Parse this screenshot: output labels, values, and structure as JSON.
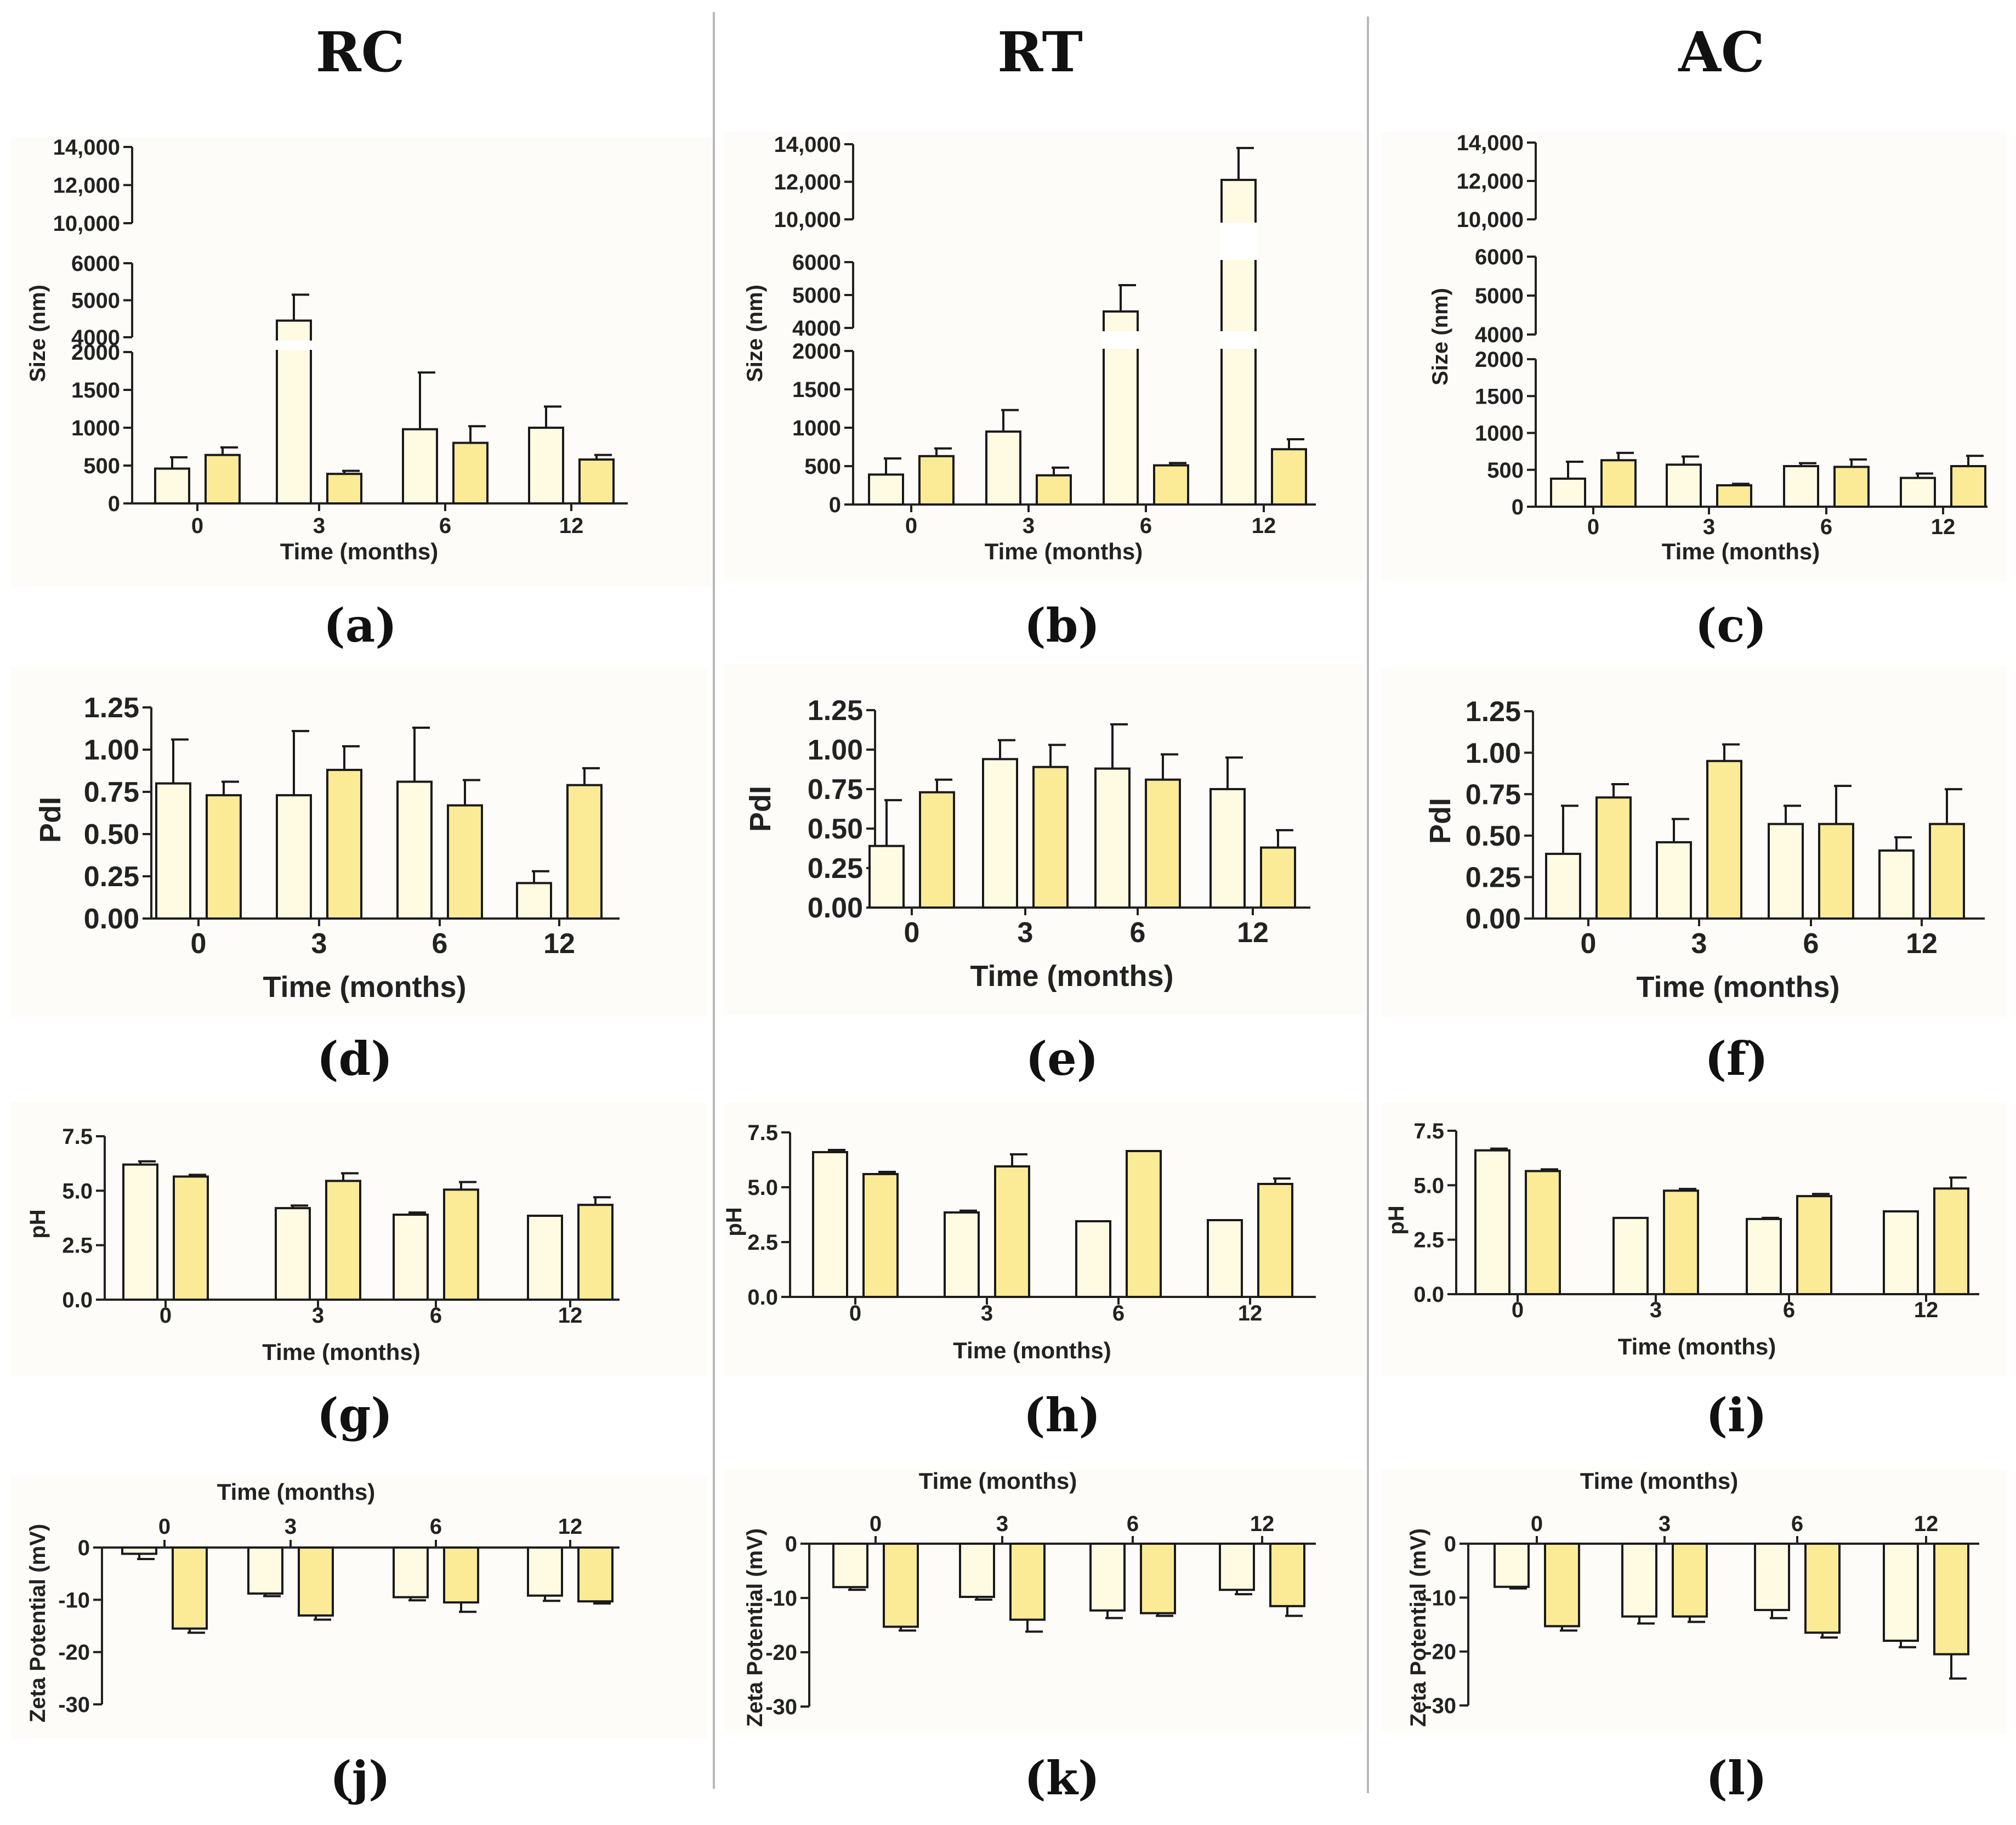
{
  "columns": [
    "RC",
    "RT",
    "AC"
  ],
  "panel_letters": [
    "(a)",
    "(b)",
    "(c)",
    "(d)",
    "(e)",
    "(f)",
    "(g)",
    "(h)",
    "(i)",
    "(j)",
    "(k)",
    "(l)"
  ],
  "colors": {
    "series1": "#fffbe3",
    "series2": "#fbeb96",
    "outline": "#1a1a1a",
    "background": "#fdfcf9"
  },
  "chart_data": [
    {
      "type": "bar",
      "panel": "(a)",
      "column": "RC",
      "xlabel": "Time (months)",
      "ylabel": "Size (nm)",
      "categories": [
        "0",
        "3",
        "6",
        "12"
      ],
      "segments": [
        {
          "range": [
            0,
            2000
          ],
          "ticks": [
            0,
            500,
            1000,
            1500,
            2000
          ],
          "tick_labels": [
            "0",
            "500",
            "1000",
            "1500",
            "2000"
          ]
        },
        {
          "range": [
            4000,
            6000
          ],
          "ticks": [
            4000,
            5000,
            6000
          ],
          "tick_labels": [
            "4000",
            "5000",
            "6000"
          ]
        },
        {
          "range": [
            10000,
            14000
          ],
          "ticks": [
            10000,
            12000,
            14000
          ],
          "tick_labels": [
            "10,000",
            "12,000",
            "14,000"
          ]
        }
      ],
      "series": [
        {
          "name": "series 1",
          "values": [
            460,
            4450,
            980,
            1000
          ],
          "errors": [
            150,
            700,
            750,
            280
          ]
        },
        {
          "name": "series 2",
          "values": [
            640,
            390,
            800,
            580
          ],
          "errors": [
            100,
            40,
            220,
            60
          ]
        }
      ]
    },
    {
      "type": "bar",
      "panel": "(b)",
      "column": "RT",
      "xlabel": "Time (months)",
      "ylabel": "Size (nm)",
      "categories": [
        "0",
        "3",
        "6",
        "12"
      ],
      "segments": [
        {
          "range": [
            0,
            2000
          ],
          "ticks": [
            0,
            500,
            1000,
            1500,
            2000
          ],
          "tick_labels": [
            "0",
            "500",
            "1000",
            "1500",
            "2000"
          ]
        },
        {
          "range": [
            4000,
            6000
          ],
          "ticks": [
            4000,
            5000,
            6000
          ],
          "tick_labels": [
            "4000",
            "5000",
            "6000"
          ]
        },
        {
          "range": [
            10000,
            14000
          ],
          "ticks": [
            10000,
            12000,
            14000
          ],
          "tick_labels": [
            "10,000",
            "12,000",
            "14,000"
          ]
        }
      ],
      "series": [
        {
          "name": "series 1",
          "values": [
            390,
            950,
            4500,
            12100
          ],
          "errors": [
            210,
            280,
            800,
            1700
          ]
        },
        {
          "name": "series 2",
          "values": [
            630,
            380,
            510,
            720
          ],
          "errors": [
            100,
            100,
            30,
            130
          ]
        }
      ]
    },
    {
      "type": "bar",
      "panel": "(c)",
      "column": "AC",
      "xlabel": "Time (months)",
      "ylabel": "Size (nm)",
      "categories": [
        "0",
        "3",
        "6",
        "12"
      ],
      "segments": [
        {
          "range": [
            0,
            2000
          ],
          "ticks": [
            0,
            500,
            1000,
            1500,
            2000
          ],
          "tick_labels": [
            "0",
            "500",
            "1000",
            "1500",
            "2000"
          ]
        },
        {
          "range": [
            4000,
            6000
          ],
          "ticks": [
            4000,
            5000,
            6000
          ],
          "tick_labels": [
            "4000",
            "5000",
            "6000"
          ]
        },
        {
          "range": [
            10000,
            14000
          ],
          "ticks": [
            10000,
            12000,
            14000
          ],
          "tick_labels": [
            "10,000",
            "12,000",
            "14,000"
          ]
        }
      ],
      "series": [
        {
          "name": "series 1",
          "values": [
            380,
            570,
            550,
            390
          ],
          "errors": [
            230,
            110,
            40,
            60
          ]
        },
        {
          "name": "series 2",
          "values": [
            630,
            290,
            540,
            550
          ],
          "errors": [
            100,
            20,
            100,
            140
          ]
        }
      ]
    },
    {
      "type": "bar",
      "panel": "(d)",
      "column": "RC",
      "xlabel": "Time (months)",
      "ylabel": "PdI",
      "categories": [
        "0",
        "3",
        "6",
        "12"
      ],
      "ylim": [
        0,
        1.25
      ],
      "ticks": [
        0,
        0.25,
        0.5,
        0.75,
        1,
        1.25
      ],
      "tick_labels": [
        "0.00",
        "0.25",
        "0.50",
        "0.75",
        "1.00",
        "1.25"
      ],
      "series": [
        {
          "name": "series 1",
          "values": [
            0.8,
            0.73,
            0.81,
            0.21
          ],
          "errors": [
            0.26,
            0.38,
            0.32,
            0.07
          ]
        },
        {
          "name": "series 2",
          "values": [
            0.73,
            0.88,
            0.67,
            0.79
          ],
          "errors": [
            0.08,
            0.14,
            0.15,
            0.1
          ]
        }
      ]
    },
    {
      "type": "bar",
      "panel": "(e)",
      "column": "RT",
      "xlabel": "Time (months)",
      "ylabel": "PdI",
      "categories": [
        "0",
        "3",
        "6",
        "12"
      ],
      "ylim": [
        0,
        1.25
      ],
      "ticks": [
        0,
        0.25,
        0.5,
        0.75,
        1,
        1.25
      ],
      "tick_labels": [
        "0.00",
        "0.25",
        "0.50",
        "0.75",
        "1.00",
        "1.25"
      ],
      "series": [
        {
          "name": "series 1",
          "values": [
            0.39,
            0.94,
            0.88,
            0.75
          ],
          "errors": [
            0.29,
            0.12,
            0.28,
            0.2
          ]
        },
        {
          "name": "series 2",
          "values": [
            0.73,
            0.89,
            0.81,
            0.38
          ],
          "errors": [
            0.08,
            0.14,
            0.16,
            0.11
          ]
        }
      ]
    },
    {
      "type": "bar",
      "panel": "(f)",
      "column": "AC",
      "xlabel": "Time (months)",
      "ylabel": "PdI",
      "categories": [
        "0",
        "3",
        "6",
        "12"
      ],
      "ylim": [
        0,
        1.25
      ],
      "ticks": [
        0,
        0.25,
        0.5,
        0.75,
        1,
        1.25
      ],
      "tick_labels": [
        "0.00",
        "0.25",
        "0.50",
        "0.75",
        "1.00",
        "1.25"
      ],
      "series": [
        {
          "name": "series 1",
          "values": [
            0.39,
            0.46,
            0.57,
            0.41
          ],
          "errors": [
            0.29,
            0.14,
            0.11,
            0.08
          ]
        },
        {
          "name": "series 2",
          "values": [
            0.73,
            0.95,
            0.57,
            0.57
          ],
          "errors": [
            0.08,
            0.1,
            0.23,
            0.21
          ]
        }
      ]
    },
    {
      "type": "bar",
      "panel": "(g)",
      "column": "RC",
      "xlabel": "Time (months)",
      "ylabel": "pH",
      "categories": [
        "0",
        "3",
        "6",
        "12"
      ],
      "ylim": [
        0,
        7.5
      ],
      "ticks": [
        0,
        2.5,
        5,
        7.5
      ],
      "tick_labels": [
        "0.0",
        "2.5",
        "5.0",
        "7.5"
      ],
      "series": [
        {
          "name": "series 1",
          "values": [
            6.2,
            4.2,
            3.9,
            3.85
          ],
          "errors": [
            0.15,
            0.12,
            0.1,
            0
          ]
        },
        {
          "name": "series 2",
          "values": [
            5.65,
            5.45,
            5.05,
            4.35
          ],
          "errors": [
            0.08,
            0.35,
            0.35,
            0.35
          ]
        }
      ]
    },
    {
      "type": "bar",
      "panel": "(h)",
      "column": "RT",
      "xlabel": "Time (months)",
      "ylabel": "pH",
      "categories": [
        "0",
        "3",
        "6",
        "12"
      ],
      "ylim": [
        0,
        7.5
      ],
      "ticks": [
        0,
        2.5,
        5,
        7.5
      ],
      "tick_labels": [
        "0.0",
        "2.5",
        "5.0",
        "7.5"
      ],
      "series": [
        {
          "name": "series 1",
          "values": [
            6.6,
            3.85,
            3.45,
            3.5
          ],
          "errors": [
            0.1,
            0.08,
            0,
            0
          ]
        },
        {
          "name": "series 2",
          "values": [
            5.6,
            5.95,
            6.65,
            5.15
          ],
          "errors": [
            0.1,
            0.55,
            0,
            0.25
          ]
        }
      ]
    },
    {
      "type": "bar",
      "panel": "(i)",
      "column": "AC",
      "xlabel": "Time (months)",
      "ylabel": "pH",
      "categories": [
        "0",
        "3",
        "6",
        "12"
      ],
      "ylim": [
        0,
        7.5
      ],
      "ticks": [
        0,
        2.5,
        5,
        7.5
      ],
      "tick_labels": [
        "0.0",
        "2.5",
        "5.0",
        "7.5"
      ],
      "series": [
        {
          "name": "series 1",
          "values": [
            6.6,
            3.5,
            3.45,
            3.8
          ],
          "errors": [
            0.08,
            0,
            0.05,
            0
          ]
        },
        {
          "name": "series 2",
          "values": [
            5.65,
            4.75,
            4.5,
            4.85
          ],
          "errors": [
            0.08,
            0.08,
            0.1,
            0.5
          ]
        }
      ]
    },
    {
      "type": "bar",
      "panel": "(j)",
      "column": "RC",
      "xlabel": "Time (months)",
      "ylabel": "Zeta Potential (mV)",
      "categories": [
        "0",
        "3",
        "6",
        "12"
      ],
      "ylim": [
        -30,
        0
      ],
      "ticks": [
        0,
        -10,
        -20,
        -30
      ],
      "tick_labels": [
        "0",
        "-10",
        "-20",
        "-30"
      ],
      "series": [
        {
          "name": "series 1",
          "values": [
            -1.2,
            -8.8,
            -9.5,
            -9.2
          ],
          "errors": [
            1,
            0.5,
            0.6,
            1
          ]
        },
        {
          "name": "series 2",
          "values": [
            -15.5,
            -13,
            -10.5,
            -10.3
          ],
          "errors": [
            0.8,
            0.8,
            1.8,
            0.4
          ]
        }
      ]
    },
    {
      "type": "bar",
      "panel": "(k)",
      "column": "RT",
      "xlabel": "Time (months)",
      "ylabel": "Zeta Potential (mV)",
      "categories": [
        "0",
        "3",
        "6",
        "12"
      ],
      "ylim": [
        -30,
        0
      ],
      "ticks": [
        0,
        -10,
        -20,
        -30
      ],
      "tick_labels": [
        "0",
        "-10",
        "-20",
        "-30"
      ],
      "series": [
        {
          "name": "series 1",
          "values": [
            -8,
            -9.8,
            -12.3,
            -8.5
          ],
          "errors": [
            0.5,
            0.5,
            1.4,
            0.8
          ]
        },
        {
          "name": "series 2",
          "values": [
            -15.3,
            -14,
            -12.8,
            -11.5
          ],
          "errors": [
            0.7,
            2.2,
            0.5,
            1.8
          ]
        }
      ]
    },
    {
      "type": "bar",
      "panel": "(l)",
      "column": "AC",
      "xlabel": "Time (months)",
      "ylabel": "Zeta Potential (mV)",
      "categories": [
        "0",
        "3",
        "6",
        "12"
      ],
      "ylim": [
        -30,
        0
      ],
      "ticks": [
        0,
        -10,
        -20,
        -30
      ],
      "tick_labels": [
        "0",
        "-10",
        "-20",
        "-30"
      ],
      "series": [
        {
          "name": "series 1",
          "values": [
            -8,
            -13.5,
            -12.3,
            -18
          ],
          "errors": [
            0.3,
            1.3,
            1.5,
            1.2
          ]
        },
        {
          "name": "series 2",
          "values": [
            -15.3,
            -13.5,
            -16.5,
            -20.5
          ],
          "errors": [
            0.8,
            1,
            0.9,
            4.5
          ]
        }
      ]
    }
  ]
}
